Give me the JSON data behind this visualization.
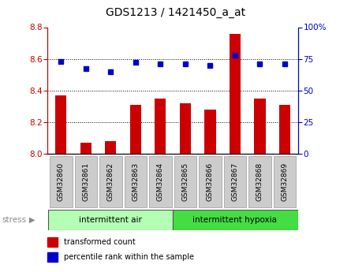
{
  "title": "GDS1213 / 1421450_a_at",
  "samples": [
    "GSM32860",
    "GSM32861",
    "GSM32862",
    "GSM32863",
    "GSM32864",
    "GSM32865",
    "GSM32866",
    "GSM32867",
    "GSM32868",
    "GSM32869"
  ],
  "transformed_count": [
    8.37,
    8.07,
    8.08,
    8.31,
    8.35,
    8.32,
    8.28,
    8.76,
    8.35,
    8.31
  ],
  "percentile_rank": [
    73,
    67,
    65,
    72,
    71,
    71,
    70,
    78,
    71,
    71
  ],
  "bar_color": "#cc0000",
  "dot_color": "#0000cc",
  "ylim_left": [
    8.0,
    8.8
  ],
  "ylim_right": [
    0,
    100
  ],
  "yticks_left": [
    8.0,
    8.2,
    8.4,
    8.6,
    8.8
  ],
  "yticks_right": [
    0,
    25,
    50,
    75,
    100
  ],
  "group1_label": "intermittent air",
  "group2_label": "intermittent hypoxia",
  "group1_color": "#b3ffb3",
  "group2_color": "#44dd44",
  "stress_label": "stress",
  "legend_bar": "transformed count",
  "legend_dot": "percentile rank within the sample",
  "tick_bg_color": "#cccccc",
  "n_group1": 5,
  "n_group2": 5
}
